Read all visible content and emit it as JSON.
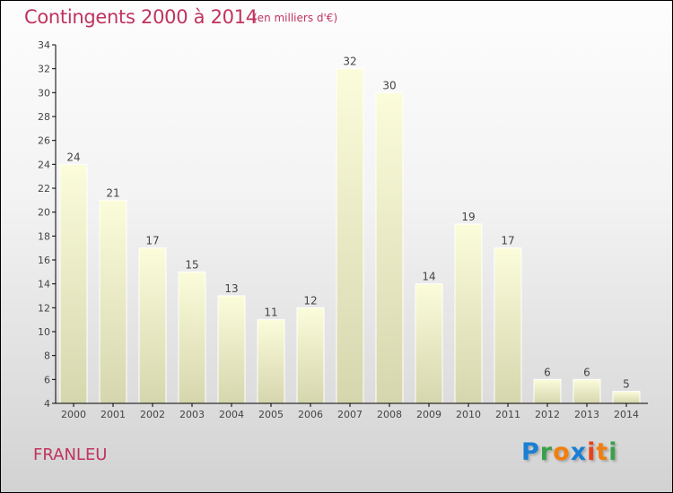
{
  "header": {
    "title": "Contingents 2000 à 2014",
    "subtitle": "(en milliers d'€)"
  },
  "footer": {
    "commune": "FRANLEU",
    "logo": "Proxiti"
  },
  "colors": {
    "title": "#c0335f",
    "bar_top": "#fbfcda",
    "bar_bottom": "#d6d6ae"
  },
  "chart_data": {
    "type": "bar",
    "title": "Contingents 2000 à 2014",
    "ylabel": "(en milliers d'€)",
    "categories": [
      "2000",
      "2001",
      "2002",
      "2003",
      "2004",
      "2005",
      "2006",
      "2007",
      "2008",
      "2009",
      "2010",
      "2011",
      "2012",
      "2013",
      "2014"
    ],
    "values": [
      24,
      21,
      17,
      15,
      13,
      11,
      12,
      32,
      30,
      14,
      19,
      17,
      6,
      6,
      5
    ],
    "ylim": [
      4,
      34
    ],
    "yticks": [
      4,
      6,
      8,
      10,
      12,
      14,
      16,
      18,
      20,
      22,
      24,
      26,
      28,
      30,
      32,
      34
    ],
    "grid": false
  }
}
